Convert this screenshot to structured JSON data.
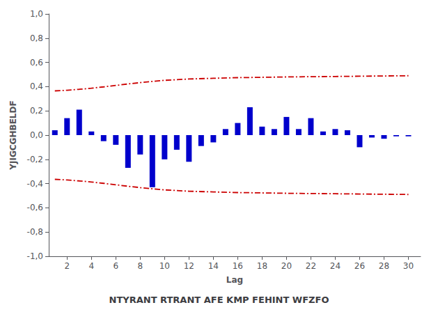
{
  "chart_data": {
    "type": "bar",
    "subtitle": "NTYRANT RTRANT AFE KMP FEHINT WFZFO",
    "xlabel": "Lag",
    "ylabel": "YJIGCGHBELDF",
    "xlim": [
      0.5,
      31
    ],
    "xticks": [
      2,
      4,
      6,
      8,
      10,
      12,
      14,
      16,
      18,
      20,
      22,
      24,
      26,
      28,
      30
    ],
    "ylim": [
      -1.0,
      1.0
    ],
    "yticks": [
      {
        "value": -1.0,
        "label": "-1,0"
      },
      {
        "value": -0.8,
        "label": "-0,8"
      },
      {
        "value": -0.6,
        "label": "-0,6"
      },
      {
        "value": -0.4,
        "label": "-0,4"
      },
      {
        "value": -0.2,
        "label": "-0,2"
      },
      {
        "value": 0.0,
        "label": "0,0"
      },
      {
        "value": 0.2,
        "label": "0,2"
      },
      {
        "value": 0.4,
        "label": "0,4"
      },
      {
        "value": 0.6,
        "label": "0,6"
      },
      {
        "value": 0.8,
        "label": "0,8"
      },
      {
        "value": 1.0,
        "label": "1,0"
      }
    ],
    "grid": false,
    "series": [
      {
        "type": "bar",
        "color": "#0000cc",
        "x": [
          1,
          2,
          3,
          4,
          5,
          6,
          7,
          8,
          9,
          10,
          11,
          12,
          13,
          14,
          15,
          16,
          17,
          18,
          19,
          20,
          21,
          22,
          23,
          24,
          25,
          26,
          27,
          28,
          29,
          30
        ],
        "values": [
          0.04,
          0.14,
          0.21,
          0.03,
          -0.05,
          -0.08,
          -0.27,
          -0.16,
          -0.43,
          -0.2,
          -0.12,
          -0.22,
          -0.09,
          -0.06,
          0.05,
          0.1,
          0.23,
          0.07,
          0.05,
          0.15,
          0.05,
          0.14,
          0.03,
          0.05,
          0.04,
          -0.1,
          -0.02,
          -0.03,
          -0.01,
          -0.01
        ]
      },
      {
        "type": "line",
        "color": "#cc0000",
        "line_style": "dashdot",
        "x": [
          1,
          2,
          3,
          4,
          5,
          6,
          7,
          8,
          9,
          10,
          12,
          14,
          16,
          18,
          20,
          22,
          24,
          26,
          28,
          30
        ],
        "values": [
          0.365,
          0.37,
          0.378,
          0.387,
          0.398,
          0.41,
          0.422,
          0.433,
          0.443,
          0.452,
          0.463,
          0.469,
          0.474,
          0.477,
          0.48,
          0.482,
          0.484,
          0.486,
          0.488,
          0.49
        ]
      },
      {
        "type": "line",
        "color": "#cc0000",
        "line_style": "dashdot",
        "x": [
          1,
          2,
          3,
          4,
          5,
          6,
          7,
          8,
          9,
          10,
          12,
          14,
          16,
          18,
          20,
          22,
          24,
          26,
          28,
          30
        ],
        "values": [
          -0.365,
          -0.37,
          -0.378,
          -0.387,
          -0.398,
          -0.41,
          -0.422,
          -0.433,
          -0.443,
          -0.452,
          -0.463,
          -0.469,
          -0.474,
          -0.477,
          -0.48,
          -0.482,
          -0.484,
          -0.486,
          -0.488,
          -0.49
        ]
      }
    ]
  }
}
